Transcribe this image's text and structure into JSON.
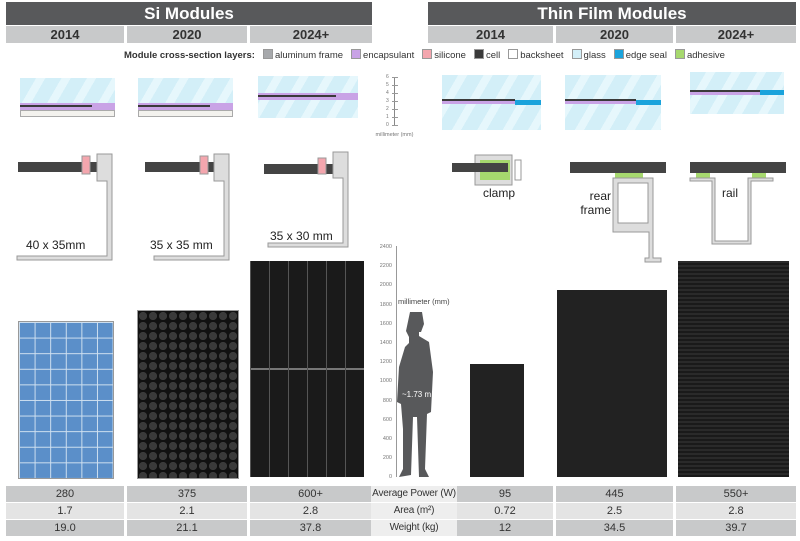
{
  "headers": {
    "si": "Si Modules",
    "thin_film": "Thin Film Modules"
  },
  "years": {
    "si": [
      "2014",
      "2020",
      "2024+"
    ],
    "thin_film": [
      "2014",
      "2020",
      "2024+"
    ]
  },
  "legend": {
    "title": "Module cross-section layers:",
    "items": [
      {
        "label": "aluminum frame",
        "color": "#a7a9ac"
      },
      {
        "label": "encapsulant",
        "color": "#c9a3e6"
      },
      {
        "label": "silicone",
        "color": "#f4a6ae"
      },
      {
        "label": "cell",
        "color": "#3a3a3a"
      },
      {
        "label": "backsheet",
        "color": "#ffffff"
      },
      {
        "label": "glass",
        "color": "#d3eff8"
      },
      {
        "label": "edge seal",
        "color": "#1aa3dc"
      },
      {
        "label": "adhesive",
        "color": "#a6d86e"
      }
    ]
  },
  "thickness_scale": {
    "ticks": [
      "6",
      "5",
      "4",
      "3",
      "2",
      "1",
      "0"
    ],
    "unit": "millimeter (mm)"
  },
  "frames": {
    "si": [
      "40 x 35mm",
      "35 x 35 mm",
      "35 x 30 mm"
    ],
    "thin_film": [
      "clamp",
      "rear frame",
      "rail"
    ]
  },
  "height_scale": {
    "ticks": [
      "2400",
      "2200",
      "2000",
      "1800",
      "1600",
      "1400",
      "1200",
      "1000",
      "800",
      "600",
      "400",
      "200",
      "0"
    ],
    "unit": "millimeter (mm)",
    "person_label": "~1.73 m"
  },
  "table": {
    "rows": [
      {
        "label": "Average Power (W)",
        "si": [
          "280",
          "375",
          "600+"
        ],
        "thin_film": [
          "95",
          "445",
          "550+"
        ]
      },
      {
        "label": "Area (m²)",
        "si": [
          "1.7",
          "2.1",
          "2.8"
        ],
        "thin_film": [
          "0.72",
          "2.5",
          "2.8"
        ]
      },
      {
        "label": "Weight (kg)",
        "si": [
          "19.0",
          "21.1",
          "37.8"
        ],
        "thin_film": [
          "12",
          "34.5",
          "39.7"
        ]
      }
    ]
  }
}
